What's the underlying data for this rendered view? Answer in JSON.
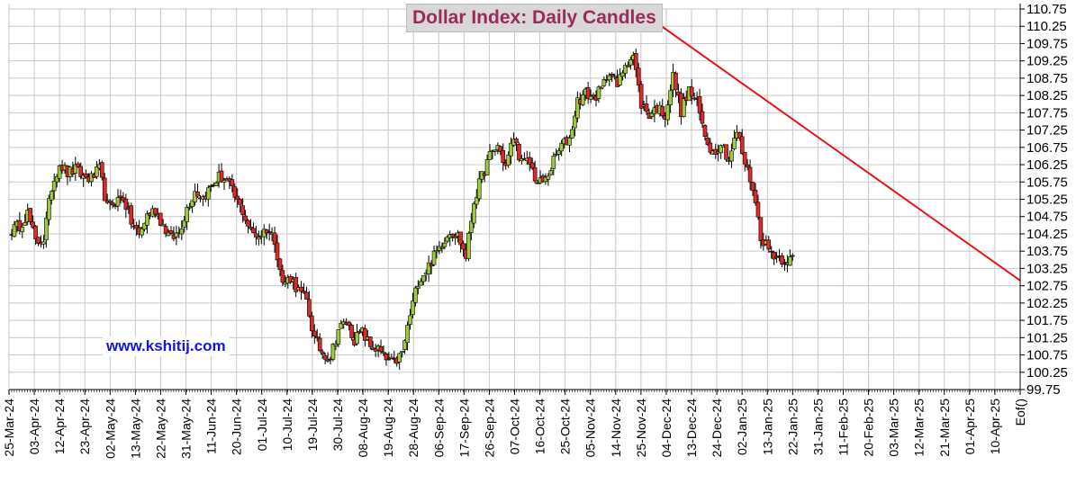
{
  "chart_data": {
    "type": "candlestick",
    "title": "Dollar Index: Daily Candles",
    "watermark": "www.kshitij.com",
    "y_axis_position": "right",
    "ylim": [
      99.75,
      110.75
    ],
    "y_ticks": [
      "110.75",
      "110.25",
      "109.75",
      "109.25",
      "108.75",
      "108.25",
      "107.75",
      "107.25",
      "106.75",
      "106.25",
      "105.75",
      "105.25",
      "104.75",
      "104.25",
      "103.75",
      "103.25",
      "102.75",
      "102.25",
      "101.75",
      "101.25",
      "100.75",
      "100.25",
      "99.75"
    ],
    "x_ticks": [
      "25-Mar-24",
      "03-Apr-24",
      "12-Apr-24",
      "23-Apr-24",
      "02-May-24",
      "13-May-24",
      "22-May-24",
      "31-May-24",
      "11-Jun-24",
      "20-Jun-24",
      "01-Jul-24",
      "10-Jul-24",
      "19-Jul-24",
      "30-Jul-24",
      "08-Aug-24",
      "19-Aug-24",
      "28-Aug-24",
      "06-Sep-24",
      "17-Sep-24",
      "26-Sep-24",
      "07-Oct-24",
      "16-Oct-24",
      "25-Oct-24",
      "05-Nov-24",
      "14-Nov-24",
      "25-Nov-24",
      "04-Dec-24",
      "13-Dec-24",
      "24-Dec-24",
      "02-Jan-25",
      "13-Jan-25",
      "22-Jan-25",
      "31-Jan-25",
      "11-Feb-25",
      "20-Feb-25",
      "03-Mar-25",
      "12-Mar-25",
      "21-Mar-25",
      "01-Apr-25",
      "10-Apr-25",
      "Eof()"
    ],
    "up_color": "#9ccc3c",
    "down_color": "#e02828",
    "grid": "horizontal and vertical, light gray",
    "close_path": [
      [
        0,
        104.35
      ],
      [
        1,
        104.5
      ],
      [
        2,
        104.85
      ],
      [
        3,
        104.0
      ],
      [
        4,
        104.1
      ],
      [
        5,
        105.6
      ],
      [
        6,
        106.3
      ],
      [
        7,
        106.0
      ],
      [
        8,
        106.1
      ],
      [
        9,
        105.9
      ],
      [
        10,
        105.85
      ],
      [
        11,
        106.1
      ],
      [
        12,
        105.0
      ],
      [
        13,
        105.2
      ],
      [
        14,
        105.3
      ],
      [
        15,
        104.6
      ],
      [
        16,
        104.2
      ],
      [
        17,
        104.8
      ],
      [
        18,
        104.95
      ],
      [
        19,
        104.5
      ],
      [
        20,
        104.1
      ],
      [
        21,
        104.3
      ],
      [
        22,
        105.0
      ],
      [
        23,
        105.5
      ],
      [
        24,
        105.3
      ],
      [
        25,
        105.6
      ],
      [
        26,
        105.9
      ],
      [
        27,
        105.8
      ],
      [
        28,
        105.3
      ],
      [
        29,
        104.9
      ],
      [
        30,
        104.3
      ],
      [
        31,
        104.2
      ],
      [
        32,
        104.4
      ],
      [
        33,
        104.1
      ],
      [
        34,
        102.8
      ],
      [
        35,
        103.0
      ],
      [
        36,
        102.6
      ],
      [
        37,
        102.3
      ],
      [
        38,
        101.2
      ],
      [
        39,
        100.8
      ],
      [
        40,
        100.7
      ],
      [
        41,
        101.5
      ],
      [
        42,
        101.7
      ],
      [
        43,
        101.2
      ],
      [
        44,
        101.4
      ],
      [
        45,
        101.0
      ],
      [
        46,
        100.9
      ],
      [
        47,
        100.6
      ],
      [
        48,
        100.5
      ],
      [
        49,
        100.8
      ],
      [
        50,
        101.9
      ],
      [
        51,
        102.9
      ],
      [
        52,
        103.2
      ],
      [
        53,
        103.6
      ],
      [
        54,
        104.0
      ],
      [
        55,
        104.35
      ],
      [
        56,
        104.2
      ],
      [
        57,
        103.6
      ],
      [
        58,
        105.2
      ],
      [
        59,
        105.9
      ],
      [
        60,
        106.5
      ],
      [
        61,
        106.8
      ],
      [
        62,
        106.2
      ],
      [
        63,
        107.05
      ],
      [
        64,
        106.3
      ],
      [
        65,
        106.3
      ],
      [
        66,
        105.7
      ],
      [
        67,
        105.8
      ],
      [
        68,
        106.35
      ],
      [
        69,
        106.8
      ],
      [
        70,
        107.0
      ],
      [
        71,
        108.1
      ],
      [
        72,
        108.3
      ],
      [
        73,
        108.2
      ],
      [
        74,
        108.4
      ],
      [
        75,
        109.0
      ],
      [
        76,
        108.5
      ],
      [
        77,
        109.2
      ],
      [
        78,
        109.4
      ],
      [
        79,
        108.0
      ],
      [
        80,
        107.7
      ],
      [
        81,
        107.9
      ],
      [
        82,
        107.7
      ],
      [
        83,
        108.8
      ],
      [
        84,
        107.8
      ],
      [
        85,
        108.4
      ],
      [
        86,
        108.0
      ],
      [
        87,
        107.1
      ],
      [
        88,
        106.6
      ],
      [
        89,
        106.9
      ],
      [
        90,
        106.4
      ],
      [
        91,
        107.2
      ],
      [
        92,
        106.3
      ],
      [
        93,
        105.6
      ],
      [
        94,
        104.2
      ],
      [
        95,
        103.8
      ],
      [
        96,
        103.6
      ],
      [
        97,
        103.5
      ],
      [
        98,
        103.5
      ]
    ],
    "trendline": {
      "from": [
        78.5,
        110.75
      ],
      "to": [
        134.2,
        102.9
      ],
      "color": "#e81414"
    }
  }
}
